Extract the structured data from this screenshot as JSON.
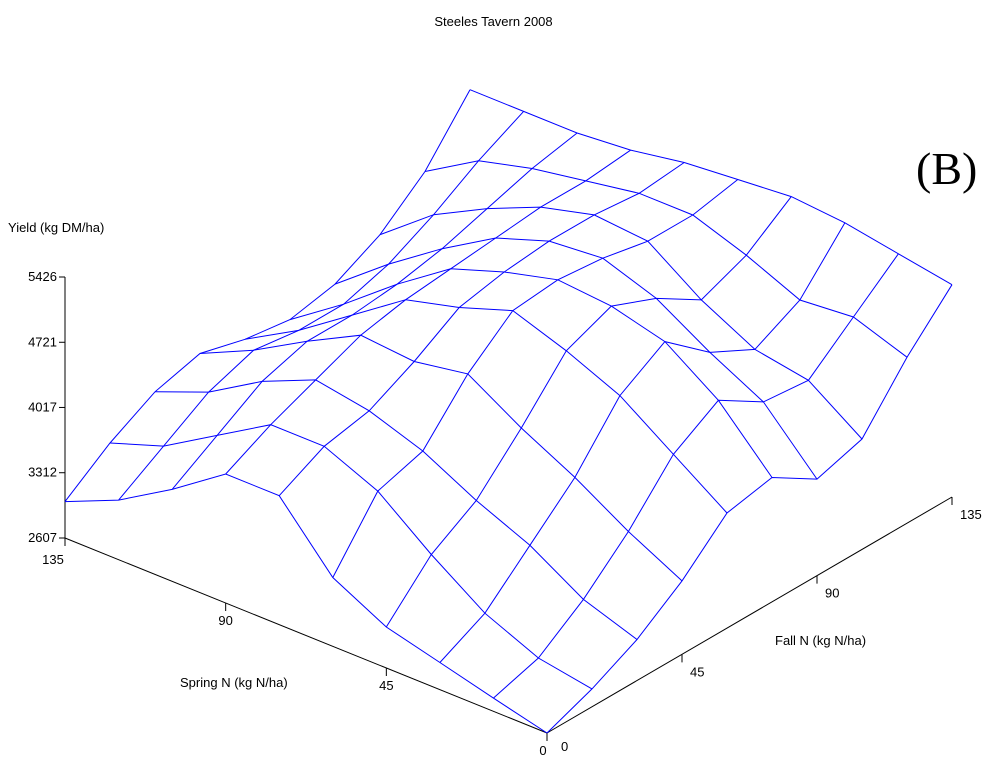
{
  "title": "Steeles Tavern 2008",
  "panel_label": "(B)",
  "chart_data": {
    "type": "surface",
    "title": "Steeles Tavern 2008",
    "zlabel": "Yield (kg DM/ha)",
    "xlabel": "Spring N (kg N/ha)",
    "ylabel": "Fall N (kg N/ha)",
    "zlim": [
      2607,
      5426
    ],
    "z_ticks": [
      "5426",
      "4721",
      "4017",
      "3312",
      "2607"
    ],
    "z_tick_values": [
      5426,
      4721,
      4017,
      3312,
      2607
    ],
    "x_ticks": [
      "135",
      "90",
      "45",
      "0"
    ],
    "x_tick_values": [
      135,
      90,
      45,
      0
    ],
    "y_ticks": [
      "0",
      "45",
      "90",
      "135"
    ],
    "y_tick_values": [
      0,
      45,
      90,
      135
    ],
    "spring_n": [
      135,
      120,
      105,
      90,
      75,
      60,
      45,
      30,
      15,
      0
    ],
    "fall_n": [
      0,
      15,
      30,
      45,
      60,
      75,
      90,
      105,
      120,
      135
    ],
    "yield": [
      [
        3000,
        3350,
        3620,
        3750,
        3620,
        3550,
        3650,
        3900,
        4300,
        4900
      ],
      [
        3250,
        3550,
        3850,
        4020,
        3950,
        3950,
        4100,
        4350,
        4650,
        4900
      ],
      [
        3600,
        3900,
        4200,
        4350,
        4350,
        4400,
        4500,
        4650,
        4800,
        4900
      ],
      [
        4000,
        4250,
        4450,
        4650,
        4750,
        4800,
        4850,
        4900,
        4900,
        4950
      ],
      [
        4000,
        4250,
        4350,
        4600,
        4900,
        5000,
        5050,
        5050,
        5000,
        5050
      ],
      [
        3350,
        4000,
        4150,
        4700,
        5100,
        5150,
        5100,
        5000,
        5000,
        5100
      ],
      [
        3050,
        3550,
        3850,
        4350,
        4900,
        5100,
        4900,
        4600,
        4800,
        5150
      ],
      [
        2900,
        3150,
        3600,
        4050,
        4650,
        4950,
        4550,
        4300,
        4550,
        5100
      ],
      [
        2750,
        2900,
        3250,
        3700,
        4250,
        4550,
        4250,
        4200,
        4600,
        5000
      ],
      [
        2607,
        2800,
        3050,
        3400,
        3850,
        3950,
        3650,
        3800,
        4400,
        4900
      ]
    ],
    "grid": false,
    "line_color": "#0000ff"
  }
}
